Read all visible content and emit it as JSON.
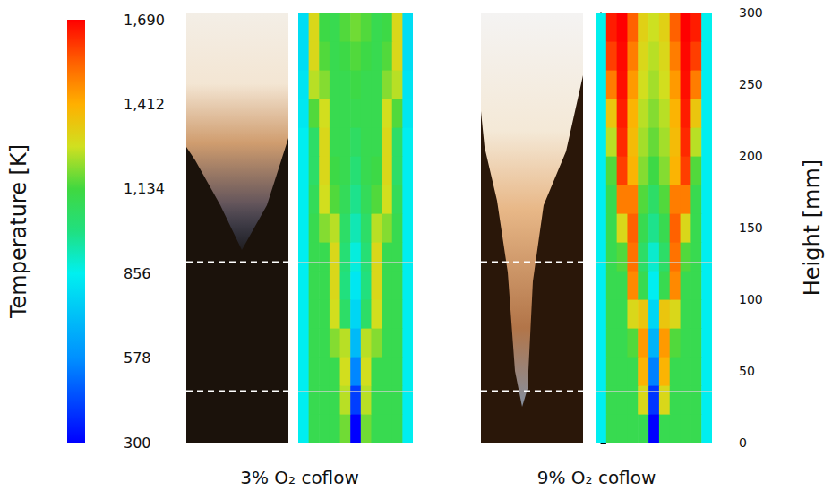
{
  "chart_data": {
    "type": "heatmap",
    "colorbar": {
      "label": "Temperature [K]",
      "range": [
        300,
        1690
      ],
      "ticks": [
        300,
        578,
        856,
        1134,
        1412,
        1690
      ]
    },
    "y_label": "Height [mm]",
    "ylim": [
      0,
      300
    ],
    "yticks": [
      0,
      50,
      100,
      150,
      200,
      250,
      300
    ],
    "reference_heights": [
      36,
      126
    ],
    "heights": [
      10,
      30,
      50,
      70,
      90,
      110,
      130,
      150,
      170,
      190,
      210,
      230,
      250,
      270,
      290
    ],
    "panels": [
      {
        "title": "3% O₂ coflow",
        "cells": [
          [
            850,
            1100,
            1100,
            1100,
            1180,
            300,
            1180,
            1100,
            1100,
            1100,
            850
          ],
          [
            850,
            1100,
            1100,
            1100,
            1250,
            420,
            1250,
            1100,
            1100,
            1100,
            850
          ],
          [
            850,
            1100,
            1100,
            1100,
            1280,
            560,
            1280,
            1100,
            1100,
            1100,
            850
          ],
          [
            850,
            1100,
            1100,
            1200,
            1250,
            700,
            1250,
            1200,
            1100,
            1100,
            850
          ],
          [
            850,
            1100,
            1100,
            1280,
            1050,
            780,
            1050,
            1280,
            1100,
            1100,
            850
          ],
          [
            850,
            1100,
            1100,
            1300,
            1000,
            830,
            1000,
            1300,
            1100,
            1100,
            850
          ],
          [
            850,
            1100,
            1100,
            1300,
            1020,
            880,
            1020,
            1300,
            1100,
            1100,
            850
          ],
          [
            850,
            1100,
            1200,
            1250,
            1050,
            930,
            1050,
            1250,
            1200,
            1100,
            850
          ],
          [
            850,
            1080,
            1280,
            1150,
            1080,
            980,
            1080,
            1150,
            1280,
            1080,
            850
          ],
          [
            850,
            1050,
            1300,
            1120,
            1100,
            1020,
            1100,
            1120,
            1300,
            1050,
            850
          ],
          [
            850,
            1050,
            1300,
            1100,
            1100,
            1060,
            1100,
            1100,
            1300,
            1050,
            850
          ],
          [
            830,
            1150,
            1280,
            1100,
            1100,
            1100,
            1100,
            1100,
            1280,
            1150,
            830
          ],
          [
            820,
            1250,
            1200,
            1100,
            1100,
            1120,
            1100,
            1100,
            1200,
            1250,
            820
          ],
          [
            800,
            1300,
            1150,
            1100,
            1120,
            1150,
            1120,
            1100,
            1150,
            1300,
            800
          ],
          [
            800,
            1300,
            1120,
            1100,
            1150,
            1180,
            1150,
            1100,
            1120,
            1300,
            800
          ]
        ]
      },
      {
        "title": "9% O₂ coflow",
        "cells": [
          [
            850,
            1100,
            1100,
            1100,
            1100,
            300,
            1100,
            1100,
            1100,
            1100,
            850
          ],
          [
            850,
            1100,
            1100,
            1100,
            1300,
            400,
            1300,
            1100,
            1100,
            1100,
            850
          ],
          [
            850,
            1100,
            1100,
            1100,
            1400,
            550,
            1400,
            1100,
            1100,
            1100,
            850
          ],
          [
            850,
            1100,
            1100,
            1150,
            1450,
            680,
            1450,
            1150,
            1100,
            1100,
            850
          ],
          [
            850,
            1100,
            1100,
            1300,
            1350,
            780,
            1350,
            1300,
            1100,
            1100,
            850
          ],
          [
            850,
            1100,
            1100,
            1480,
            1100,
            850,
            1100,
            1480,
            1100,
            1100,
            850
          ],
          [
            850,
            1100,
            1150,
            1520,
            1050,
            900,
            1050,
            1520,
            1150,
            1100,
            850
          ],
          [
            850,
            1100,
            1300,
            1550,
            1100,
            980,
            1100,
            1550,
            1300,
            1100,
            850
          ],
          [
            850,
            1100,
            1500,
            1500,
            1150,
            1050,
            1150,
            1500,
            1500,
            1100,
            850
          ],
          [
            850,
            1150,
            1600,
            1400,
            1200,
            1120,
            1200,
            1400,
            1600,
            1150,
            850
          ],
          [
            850,
            1250,
            1630,
            1380,
            1230,
            1170,
            1230,
            1380,
            1630,
            1250,
            850
          ],
          [
            850,
            1350,
            1650,
            1400,
            1250,
            1200,
            1250,
            1400,
            1650,
            1350,
            850
          ],
          [
            850,
            1500,
            1670,
            1450,
            1280,
            1230,
            1280,
            1450,
            1670,
            1500,
            850
          ],
          [
            850,
            1600,
            1680,
            1500,
            1300,
            1250,
            1300,
            1500,
            1680,
            1600,
            850
          ],
          [
            860,
            1650,
            1690,
            1550,
            1320,
            1270,
            1320,
            1550,
            1690,
            1650,
            860
          ]
        ]
      }
    ]
  }
}
